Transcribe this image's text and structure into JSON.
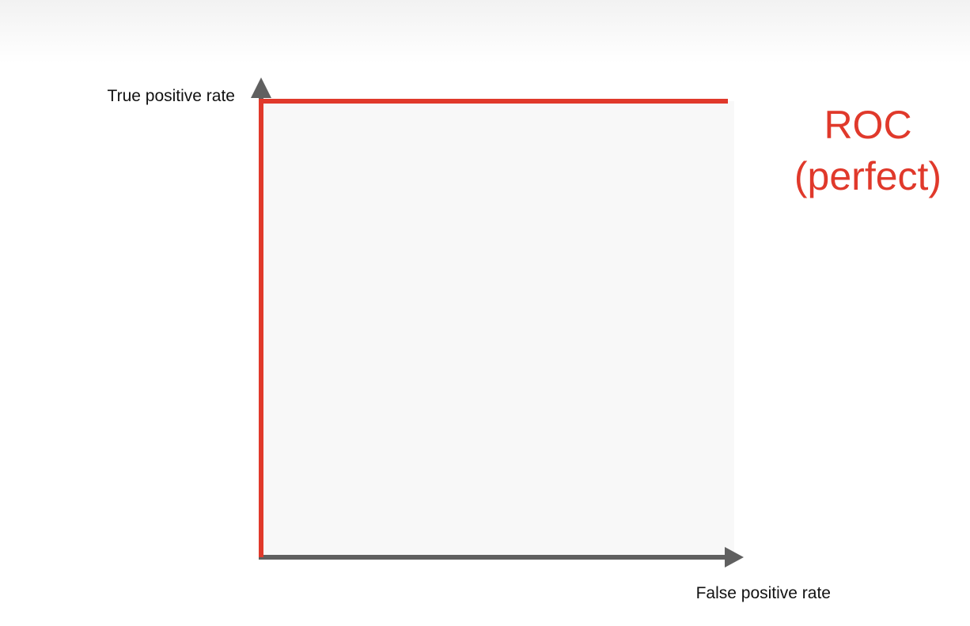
{
  "chart_data": {
    "type": "line",
    "title": "",
    "xlabel": "False positive rate",
    "ylabel": "True positive rate",
    "xlim": [
      0,
      1
    ],
    "ylim": [
      0,
      1
    ],
    "grid": false,
    "series": [
      {
        "name": "ROC (perfect)",
        "label_lines": [
          "ROC",
          "(perfect)"
        ],
        "color": "#e0392b",
        "x": [
          0,
          0,
          1
        ],
        "y": [
          0,
          1,
          1
        ]
      }
    ]
  },
  "colors": {
    "axis": "#606060",
    "plot_area": "#f8f8f8",
    "curve": "#e0392b"
  }
}
